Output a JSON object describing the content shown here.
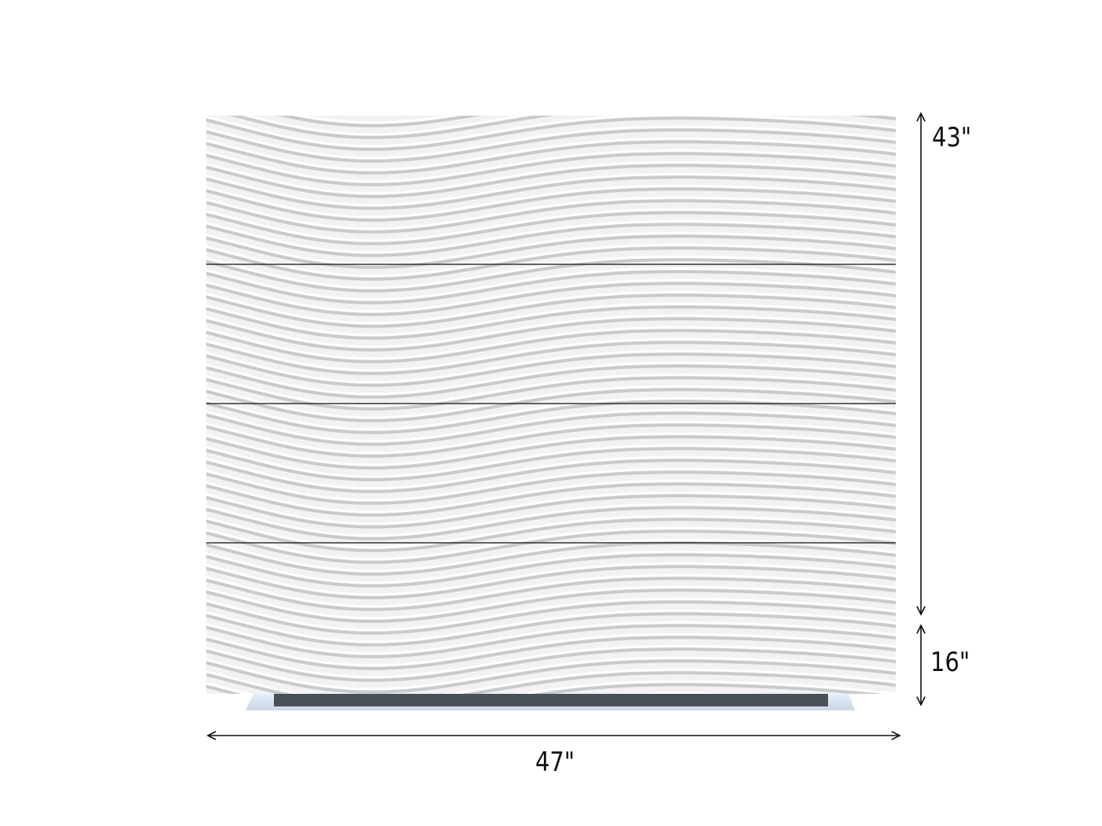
{
  "product": {
    "finish_color": "#f2f2f3",
    "base_color": "#4a5058",
    "drawer_count": 4
  },
  "dimensions": {
    "height_label": "43\"",
    "base_height_label": "16\"",
    "width_label": "47\""
  }
}
